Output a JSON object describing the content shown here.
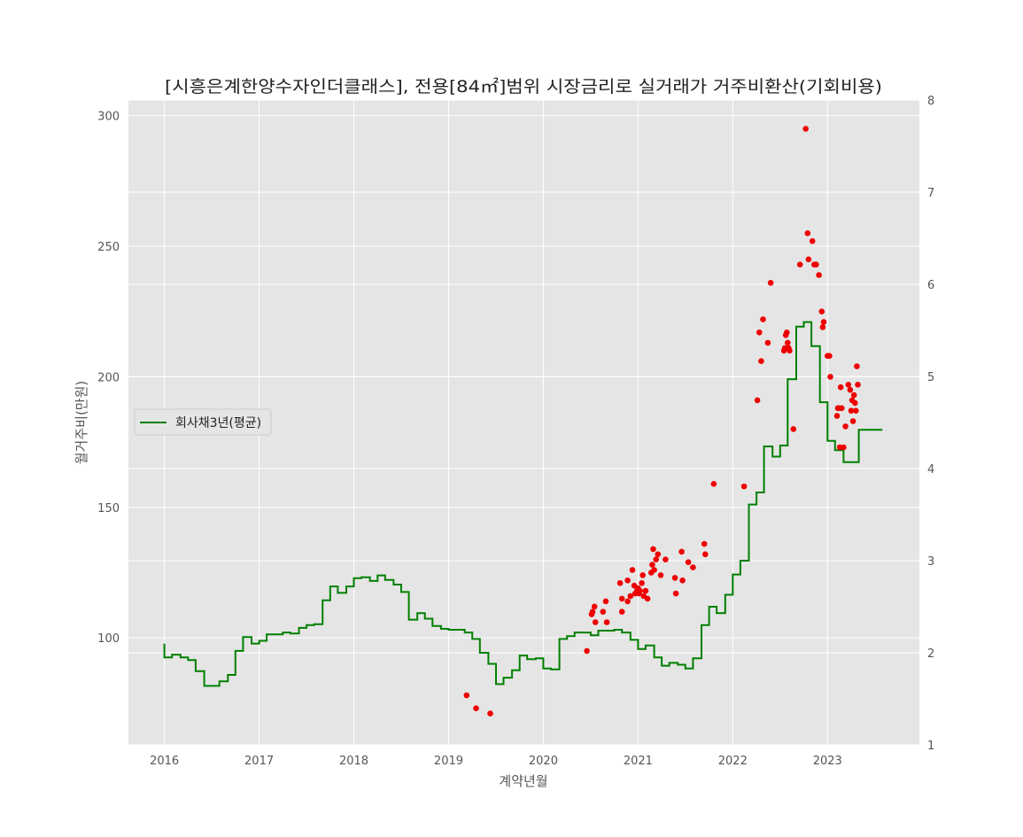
{
  "chart_data": {
    "type": "scatter",
    "title": "[시흥은계한양수자인더클래스], 전용[84㎡]범위 시장금리로 실거래가 거주비환산(기회비용)",
    "xlabel": "계약년월",
    "ylabel": "월거주비(만원)",
    "x_ticks": [
      "2016",
      "2017",
      "2018",
      "2019",
      "2020",
      "2021",
      "2022",
      "2023"
    ],
    "x_range": [
      2015.62,
      2023.97
    ],
    "y_left": {
      "range": [
        59,
        306
      ],
      "ticks": [
        100,
        150,
        200,
        250,
        300
      ]
    },
    "y_right": {
      "range": [
        1,
        8
      ],
      "ticks": [
        1,
        2,
        3,
        4,
        5,
        6,
        7,
        8
      ]
    },
    "grid": true,
    "legend_position": "center-left",
    "series": [
      {
        "name": "회사채3년(평균)",
        "kind": "step",
        "axis": "right",
        "color": "#008000",
        "points": [
          [
            2016.0,
            2.1
          ],
          [
            2016.0,
            1.95
          ],
          [
            2016.08,
            1.95
          ],
          [
            2016.08,
            1.98
          ],
          [
            2016.17,
            1.98
          ],
          [
            2016.17,
            1.95
          ],
          [
            2016.25,
            1.95
          ],
          [
            2016.25,
            1.92
          ],
          [
            2016.33,
            1.92
          ],
          [
            2016.33,
            1.8
          ],
          [
            2016.42,
            1.8
          ],
          [
            2016.42,
            1.64
          ],
          [
            2016.58,
            1.64
          ],
          [
            2016.58,
            1.69
          ],
          [
            2016.67,
            1.69
          ],
          [
            2016.67,
            1.76
          ],
          [
            2016.75,
            1.76
          ],
          [
            2016.75,
            2.02
          ],
          [
            2016.83,
            2.02
          ],
          [
            2016.83,
            2.17
          ],
          [
            2016.92,
            2.17
          ],
          [
            2016.92,
            2.1
          ],
          [
            2017.0,
            2.1
          ],
          [
            2017.0,
            2.13
          ],
          [
            2017.08,
            2.13
          ],
          [
            2017.08,
            2.2
          ],
          [
            2017.25,
            2.2
          ],
          [
            2017.25,
            2.22
          ],
          [
            2017.33,
            2.22
          ],
          [
            2017.33,
            2.21
          ],
          [
            2017.42,
            2.21
          ],
          [
            2017.42,
            2.27
          ],
          [
            2017.5,
            2.27
          ],
          [
            2017.5,
            2.3
          ],
          [
            2017.58,
            2.3
          ],
          [
            2017.58,
            2.31
          ],
          [
            2017.67,
            2.31
          ],
          [
            2017.67,
            2.57
          ],
          [
            2017.75,
            2.57
          ],
          [
            2017.75,
            2.72
          ],
          [
            2017.83,
            2.72
          ],
          [
            2017.83,
            2.65
          ],
          [
            2017.92,
            2.65
          ],
          [
            2017.92,
            2.72
          ],
          [
            2018.0,
            2.72
          ],
          [
            2018.0,
            2.81
          ],
          [
            2018.08,
            2.81
          ],
          [
            2018.08,
            2.82
          ],
          [
            2018.17,
            2.82
          ],
          [
            2018.17,
            2.78
          ],
          [
            2018.25,
            2.78
          ],
          [
            2018.25,
            2.84
          ],
          [
            2018.33,
            2.84
          ],
          [
            2018.33,
            2.79
          ],
          [
            2018.42,
            2.79
          ],
          [
            2018.42,
            2.74
          ],
          [
            2018.5,
            2.74
          ],
          [
            2018.5,
            2.66
          ],
          [
            2018.58,
            2.66
          ],
          [
            2018.58,
            2.36
          ],
          [
            2018.67,
            2.36
          ],
          [
            2018.67,
            2.43
          ],
          [
            2018.75,
            2.43
          ],
          [
            2018.75,
            2.37
          ],
          [
            2018.83,
            2.37
          ],
          [
            2018.83,
            2.29
          ],
          [
            2018.92,
            2.29
          ],
          [
            2018.92,
            2.26
          ],
          [
            2019.0,
            2.26
          ],
          [
            2019.0,
            2.25
          ],
          [
            2019.17,
            2.25
          ],
          [
            2019.17,
            2.22
          ],
          [
            2019.25,
            2.22
          ],
          [
            2019.25,
            2.15
          ],
          [
            2019.33,
            2.15
          ],
          [
            2019.33,
            2.0
          ],
          [
            2019.42,
            2.0
          ],
          [
            2019.42,
            1.88
          ],
          [
            2019.5,
            1.88
          ],
          [
            2019.5,
            1.66
          ],
          [
            2019.58,
            1.66
          ],
          [
            2019.58,
            1.73
          ],
          [
            2019.67,
            1.73
          ],
          [
            2019.67,
            1.81
          ],
          [
            2019.75,
            1.81
          ],
          [
            2019.75,
            1.97
          ],
          [
            2019.83,
            1.97
          ],
          [
            2019.83,
            1.93
          ],
          [
            2019.92,
            1.93
          ],
          [
            2019.92,
            1.94
          ],
          [
            2020.0,
            1.94
          ],
          [
            2020.0,
            1.83
          ],
          [
            2020.08,
            1.83
          ],
          [
            2020.08,
            1.82
          ],
          [
            2020.17,
            1.82
          ],
          [
            2020.17,
            2.15
          ],
          [
            2020.25,
            2.15
          ],
          [
            2020.25,
            2.18
          ],
          [
            2020.33,
            2.18
          ],
          [
            2020.33,
            2.22
          ],
          [
            2020.5,
            2.22
          ],
          [
            2020.5,
            2.19
          ],
          [
            2020.58,
            2.19
          ],
          [
            2020.58,
            2.24
          ],
          [
            2020.75,
            2.24
          ],
          [
            2020.75,
            2.25
          ],
          [
            2020.83,
            2.25
          ],
          [
            2020.83,
            2.22
          ],
          [
            2020.92,
            2.22
          ],
          [
            2020.92,
            2.14
          ],
          [
            2021.0,
            2.14
          ],
          [
            2021.0,
            2.04
          ],
          [
            2021.08,
            2.04
          ],
          [
            2021.08,
            2.08
          ],
          [
            2021.17,
            2.08
          ],
          [
            2021.17,
            1.95
          ],
          [
            2021.25,
            1.95
          ],
          [
            2021.25,
            1.86
          ],
          [
            2021.33,
            1.86
          ],
          [
            2021.33,
            1.89
          ],
          [
            2021.42,
            1.89
          ],
          [
            2021.42,
            1.87
          ],
          [
            2021.5,
            1.87
          ],
          [
            2021.5,
            1.83
          ],
          [
            2021.58,
            1.83
          ],
          [
            2021.58,
            1.94
          ],
          [
            2021.67,
            1.94
          ],
          [
            2021.67,
            2.3
          ],
          [
            2021.75,
            2.3
          ],
          [
            2021.75,
            2.5
          ],
          [
            2021.83,
            2.5
          ],
          [
            2021.83,
            2.43
          ],
          [
            2021.92,
            2.43
          ],
          [
            2021.92,
            2.63
          ],
          [
            2022.0,
            2.63
          ],
          [
            2022.0,
            2.85
          ],
          [
            2022.08,
            2.85
          ],
          [
            2022.08,
            3.0
          ],
          [
            2022.17,
            3.0
          ],
          [
            2022.17,
            3.61
          ],
          [
            2022.25,
            3.61
          ],
          [
            2022.25,
            3.74
          ],
          [
            2022.33,
            3.74
          ],
          [
            2022.33,
            4.24
          ],
          [
            2022.42,
            4.24
          ],
          [
            2022.42,
            4.13
          ],
          [
            2022.5,
            4.13
          ],
          [
            2022.5,
            4.25
          ],
          [
            2022.58,
            4.25
          ],
          [
            2022.58,
            4.97
          ],
          [
            2022.67,
            4.97
          ],
          [
            2022.67,
            5.54
          ],
          [
            2022.75,
            5.54
          ],
          [
            2022.75,
            5.59
          ],
          [
            2022.83,
            5.59
          ],
          [
            2022.83,
            5.33
          ],
          [
            2022.92,
            5.33
          ],
          [
            2022.92,
            4.72
          ],
          [
            2023.0,
            4.72
          ],
          [
            2023.0,
            4.3
          ],
          [
            2023.08,
            4.3
          ],
          [
            2023.08,
            4.2
          ],
          [
            2023.17,
            4.2
          ],
          [
            2023.17,
            4.07
          ],
          [
            2023.33,
            4.07
          ],
          [
            2023.33,
            4.42
          ],
          [
            2023.58,
            4.42
          ]
        ]
      },
      {
        "name": "",
        "kind": "scatter",
        "axis": "left",
        "color": "#ee0000",
        "points": [
          [
            2019.19,
            78
          ],
          [
            2019.29,
            73
          ],
          [
            2019.44,
            71
          ],
          [
            2020.46,
            95
          ],
          [
            2020.51,
            109
          ],
          [
            2020.52,
            110
          ],
          [
            2020.54,
            112
          ],
          [
            2020.55,
            106
          ],
          [
            2020.63,
            110
          ],
          [
            2020.66,
            114
          ],
          [
            2020.67,
            106
          ],
          [
            2020.81,
            121
          ],
          [
            2020.83,
            115
          ],
          [
            2020.83,
            110
          ],
          [
            2020.89,
            122
          ],
          [
            2020.89,
            114
          ],
          [
            2020.92,
            116
          ],
          [
            2020.94,
            126
          ],
          [
            2020.96,
            120
          ],
          [
            2020.97,
            117
          ],
          [
            2020.99,
            118
          ],
          [
            2021.0,
            119
          ],
          [
            2021.01,
            117
          ],
          [
            2021.02,
            118
          ],
          [
            2021.04,
            121
          ],
          [
            2021.05,
            124
          ],
          [
            2021.06,
            116
          ],
          [
            2021.08,
            118
          ],
          [
            2021.1,
            115
          ],
          [
            2021.14,
            125
          ],
          [
            2021.15,
            128
          ],
          [
            2021.16,
            134
          ],
          [
            2021.17,
            126
          ],
          [
            2021.19,
            130
          ],
          [
            2021.21,
            132
          ],
          [
            2021.24,
            124
          ],
          [
            2021.29,
            130
          ],
          [
            2021.39,
            123
          ],
          [
            2021.4,
            117
          ],
          [
            2021.46,
            133
          ],
          [
            2021.47,
            122
          ],
          [
            2021.53,
            129
          ],
          [
            2021.58,
            127
          ],
          [
            2021.7,
            136
          ],
          [
            2021.71,
            132
          ],
          [
            2021.8,
            159
          ],
          [
            2022.12,
            158
          ],
          [
            2022.26,
            191
          ],
          [
            2022.28,
            217
          ],
          [
            2022.3,
            206
          ],
          [
            2022.32,
            222
          ],
          [
            2022.37,
            213
          ],
          [
            2022.4,
            236
          ],
          [
            2022.54,
            210
          ],
          [
            2022.55,
            211
          ],
          [
            2022.56,
            216
          ],
          [
            2022.57,
            217
          ],
          [
            2022.58,
            213
          ],
          [
            2022.59,
            211
          ],
          [
            2022.6,
            210
          ],
          [
            2022.64,
            180
          ],
          [
            2022.71,
            243
          ],
          [
            2022.77,
            295
          ],
          [
            2022.79,
            255
          ],
          [
            2022.8,
            245
          ],
          [
            2022.84,
            252
          ],
          [
            2022.86,
            243
          ],
          [
            2022.88,
            243
          ],
          [
            2022.91,
            239
          ],
          [
            2022.94,
            225
          ],
          [
            2022.95,
            219
          ],
          [
            2022.96,
            221
          ],
          [
            2023.0,
            208
          ],
          [
            2023.02,
            208
          ],
          [
            2023.03,
            200
          ],
          [
            2023.1,
            185
          ],
          [
            2023.11,
            188
          ],
          [
            2023.12,
            188
          ],
          [
            2023.13,
            173
          ],
          [
            2023.14,
            196
          ],
          [
            2023.15,
            188
          ],
          [
            2023.17,
            173
          ],
          [
            2023.19,
            181
          ],
          [
            2023.22,
            197
          ],
          [
            2023.24,
            195
          ],
          [
            2023.25,
            187
          ],
          [
            2023.26,
            191
          ],
          [
            2023.27,
            183
          ],
          [
            2023.28,
            193
          ],
          [
            2023.29,
            190
          ],
          [
            2023.3,
            187
          ],
          [
            2023.31,
            204
          ],
          [
            2023.32,
            197
          ]
        ]
      }
    ]
  }
}
